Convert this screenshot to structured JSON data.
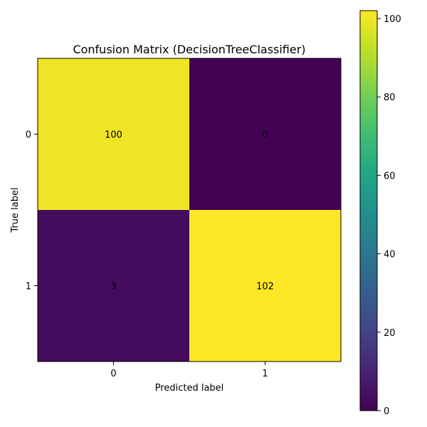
{
  "chart_data": {
    "type": "heatmap",
    "title": "Confusion Matrix (DecisionTreeClassifier)",
    "xlabel": "Predicted label",
    "ylabel": "True label",
    "x_tick_labels": [
      "0",
      "1"
    ],
    "y_tick_labels": [
      "0",
      "1"
    ],
    "matrix": [
      [
        100,
        0
      ],
      [
        3,
        102
      ]
    ],
    "colormap": "viridis",
    "colorbar": {
      "range": [
        0,
        102
      ],
      "ticks": [
        0,
        20,
        40,
        60,
        80,
        100
      ],
      "tick_labels": [
        "0",
        "20",
        "40",
        "60",
        "80",
        "100"
      ]
    },
    "cell_text_colors": {
      "on_dark": "#fde725",
      "on_light": "#440154"
    },
    "grid": false
  }
}
